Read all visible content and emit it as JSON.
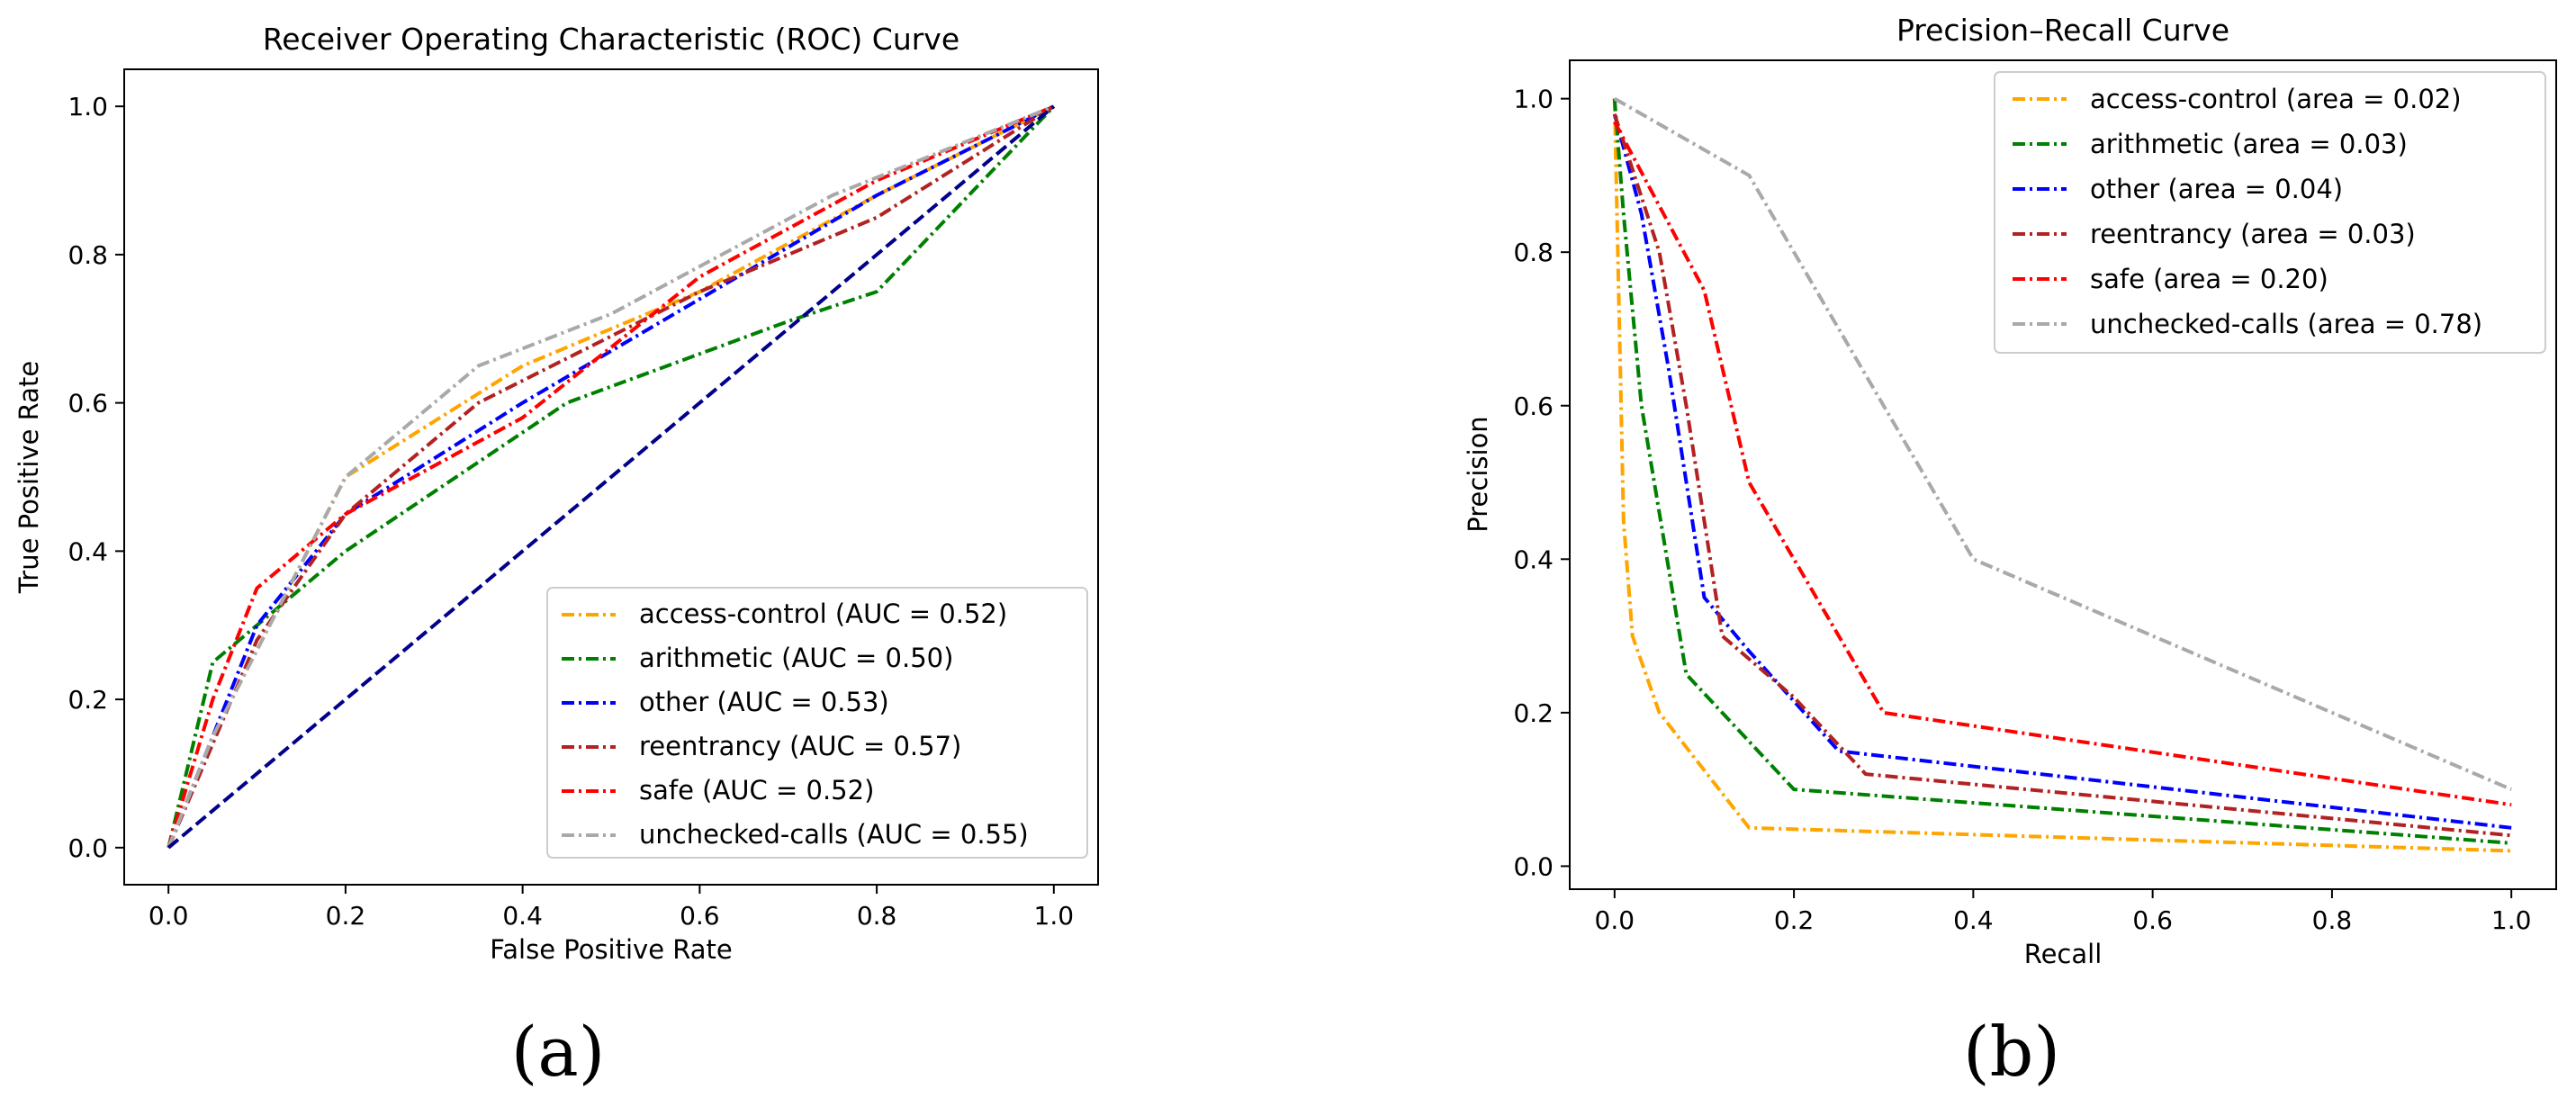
{
  "chart_data": [
    {
      "id": "roc",
      "type": "line",
      "title": "Receiver Operating Characteristic (ROC) Curve",
      "xlabel": "False Positive Rate",
      "ylabel": "True Positive Rate",
      "xlim": [
        -0.05,
        1.05
      ],
      "ylim": [
        -0.05,
        1.05
      ],
      "xticks": [
        "0.0",
        "0.2",
        "0.4",
        "0.6",
        "0.8",
        "1.0"
      ],
      "yticks": [
        "0.0",
        "0.2",
        "0.4",
        "0.6",
        "0.8",
        "1.0"
      ],
      "legend_position": "lower-right",
      "caption": "(a)",
      "diagonal": {
        "color": "#00008b",
        "x": [
          0,
          1
        ],
        "y": [
          0,
          1
        ]
      },
      "series": [
        {
          "name": "access-control (AUC = 0.52)",
          "color": "#ffa500",
          "x": [
            0,
            0.05,
            0.2,
            0.4,
            0.6,
            0.8,
            1.0
          ],
          "y": [
            0,
            0.15,
            0.5,
            0.65,
            0.75,
            0.88,
            1.0
          ]
        },
        {
          "name": "arithmetic (AUC = 0.50)",
          "color": "#008000",
          "x": [
            0,
            0.05,
            0.2,
            0.45,
            0.7,
            0.8,
            1.0
          ],
          "y": [
            0,
            0.25,
            0.4,
            0.6,
            0.71,
            0.75,
            1.0
          ]
        },
        {
          "name": "other (AUC = 0.53)",
          "color": "#0000ff",
          "x": [
            0,
            0.1,
            0.2,
            0.4,
            0.8,
            1.0
          ],
          "y": [
            0,
            0.3,
            0.45,
            0.6,
            0.88,
            1.0
          ]
        },
        {
          "name": "reentrancy (AUC = 0.57)",
          "color": "#b22222",
          "x": [
            0,
            0.1,
            0.2,
            0.35,
            0.6,
            0.8,
            1.0
          ],
          "y": [
            0,
            0.28,
            0.45,
            0.6,
            0.75,
            0.85,
            1.0
          ]
        },
        {
          "name": "safe (AUC = 0.52)",
          "color": "#ff0000",
          "x": [
            0,
            0.05,
            0.1,
            0.2,
            0.4,
            0.6,
            0.8,
            1.0
          ],
          "y": [
            0,
            0.2,
            0.35,
            0.45,
            0.58,
            0.77,
            0.9,
            1.0
          ]
        },
        {
          "name": "unchecked-calls (AUC = 0.55)",
          "color": "#a9a9a9",
          "x": [
            0,
            0.05,
            0.2,
            0.35,
            0.5,
            0.75,
            1.0
          ],
          "y": [
            0,
            0.15,
            0.5,
            0.65,
            0.72,
            0.88,
            1.0
          ]
        }
      ]
    },
    {
      "id": "pr",
      "type": "line",
      "title": "Precision–Recall Curve",
      "xlabel": "Recall",
      "ylabel": "Precision",
      "xlim": [
        -0.05,
        1.05
      ],
      "ylim": [
        -0.03,
        1.05
      ],
      "xticks": [
        "0.0",
        "0.2",
        "0.4",
        "0.6",
        "0.8",
        "1.0"
      ],
      "yticks": [
        "0.0",
        "0.2",
        "0.4",
        "0.6",
        "0.8",
        "1.0"
      ],
      "legend_position": "upper-right",
      "caption": "(b)",
      "series": [
        {
          "name": "access-control (area = 0.02)",
          "color": "#ffa500",
          "x": [
            0,
            0.01,
            0.02,
            0.05,
            0.15,
            1.0
          ],
          "y": [
            1.0,
            0.45,
            0.3,
            0.2,
            0.05,
            0.02
          ]
        },
        {
          "name": "arithmetic (area = 0.03)",
          "color": "#008000",
          "x": [
            0,
            0.01,
            0.03,
            0.08,
            0.2,
            1.0
          ],
          "y": [
            1.0,
            0.85,
            0.6,
            0.25,
            0.1,
            0.03
          ]
        },
        {
          "name": "other (area = 0.04)",
          "color": "#0000ff",
          "x": [
            0,
            0.03,
            0.06,
            0.1,
            0.15,
            0.25,
            1.0
          ],
          "y": [
            0.98,
            0.85,
            0.65,
            0.35,
            0.28,
            0.15,
            0.05
          ]
        },
        {
          "name": "reentrancy (area = 0.03)",
          "color": "#b22222",
          "x": [
            0,
            0.05,
            0.08,
            0.12,
            0.2,
            0.28,
            1.0
          ],
          "y": [
            0.98,
            0.8,
            0.6,
            0.3,
            0.22,
            0.12,
            0.04
          ]
        },
        {
          "name": "safe (area = 0.20)",
          "color": "#ff0000",
          "x": [
            0,
            0.1,
            0.15,
            0.2,
            0.3,
            1.0
          ],
          "y": [
            0.97,
            0.75,
            0.5,
            0.4,
            0.2,
            0.08
          ]
        },
        {
          "name": "unchecked-calls (area = 0.78)",
          "color": "#a9a9a9",
          "x": [
            0,
            0.15,
            0.25,
            0.4,
            1.0
          ],
          "y": [
            1.0,
            0.9,
            0.7,
            0.4,
            0.1
          ]
        }
      ]
    }
  ]
}
